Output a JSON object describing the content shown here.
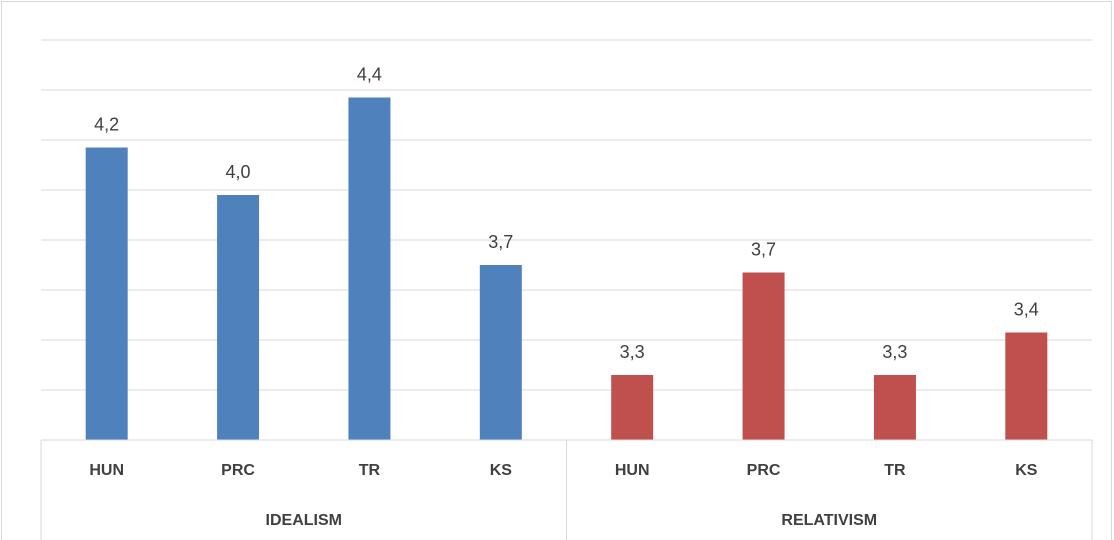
{
  "chart_data": {
    "type": "bar",
    "groups": [
      {
        "label": "IDEALISM",
        "color": "#4f81bd",
        "categories": [
          "HUN",
          "PRC",
          "TR",
          "KS"
        ],
        "values": [
          4.17,
          3.98,
          4.37,
          3.7
        ],
        "value_labels": [
          "4,2",
          "4,0",
          "4,4",
          "3,7"
        ]
      },
      {
        "label": "RELATIVISM",
        "color": "#c0504d",
        "categories": [
          "HUN",
          "PRC",
          "TR",
          "KS"
        ],
        "values": [
          3.26,
          3.67,
          3.26,
          3.43
        ],
        "value_labels": [
          "3,3",
          "3,7",
          "3,3",
          "3,4"
        ]
      }
    ],
    "ylim": [
      3.0,
      4.6
    ],
    "yticks": [
      3.0,
      3.2,
      3.4,
      3.6,
      3.8,
      4.0,
      4.2,
      4.4,
      4.6
    ],
    "grid": true
  }
}
